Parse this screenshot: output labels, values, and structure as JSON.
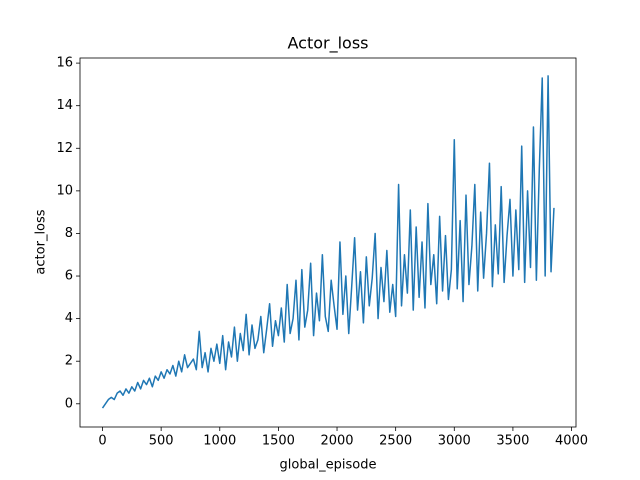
{
  "chart_data": {
    "type": "line",
    "title": "Actor_loss",
    "x_label": "global_episode",
    "y_label": "actor_loss",
    "x": [
      0,
      25,
      50,
      75,
      100,
      125,
      150,
      175,
      200,
      225,
      250,
      275,
      300,
      325,
      350,
      375,
      400,
      425,
      450,
      475,
      500,
      525,
      550,
      575,
      600,
      625,
      650,
      675,
      700,
      725,
      750,
      775,
      800,
      825,
      850,
      875,
      900,
      925,
      950,
      975,
      1000,
      1025,
      1050,
      1075,
      1100,
      1125,
      1150,
      1175,
      1200,
      1225,
      1250,
      1275,
      1300,
      1325,
      1350,
      1375,
      1400,
      1425,
      1450,
      1475,
      1500,
      1525,
      1550,
      1575,
      1600,
      1625,
      1650,
      1675,
      1700,
      1725,
      1750,
      1775,
      1800,
      1825,
      1850,
      1875,
      1900,
      1925,
      1950,
      1975,
      2000,
      2025,
      2050,
      2075,
      2100,
      2125,
      2150,
      2175,
      2200,
      2225,
      2250,
      2275,
      2300,
      2325,
      2350,
      2375,
      2400,
      2425,
      2450,
      2475,
      2500,
      2525,
      2550,
      2575,
      2600,
      2625,
      2650,
      2675,
      2700,
      2725,
      2750,
      2775,
      2800,
      2825,
      2850,
      2875,
      2900,
      2925,
      2950,
      2975,
      3000,
      3025,
      3050,
      3075,
      3100,
      3125,
      3150,
      3175,
      3200,
      3225,
      3250,
      3275,
      3300,
      3325,
      3350,
      3375,
      3400,
      3425,
      3450,
      3475,
      3500,
      3525,
      3550,
      3575,
      3600,
      3625,
      3650,
      3675,
      3700,
      3725,
      3750,
      3775,
      3800,
      3825,
      3850
    ],
    "series": [
      {
        "name": "actor_loss",
        "color": "#1f77b4",
        "values": [
          -0.2,
          0.0,
          0.2,
          0.3,
          0.2,
          0.5,
          0.6,
          0.4,
          0.7,
          0.5,
          0.8,
          0.6,
          1.0,
          0.7,
          1.1,
          0.9,
          1.2,
          0.8,
          1.3,
          1.1,
          1.5,
          1.2,
          1.6,
          1.4,
          1.8,
          1.3,
          2.0,
          1.5,
          2.3,
          1.7,
          1.9,
          2.1,
          1.6,
          3.4,
          1.7,
          2.4,
          1.5,
          2.6,
          2.0,
          2.8,
          1.9,
          3.2,
          1.6,
          2.9,
          2.2,
          3.6,
          2.0,
          3.3,
          2.5,
          4.2,
          2.3,
          3.7,
          2.6,
          3.0,
          4.1,
          2.4,
          3.5,
          4.7,
          2.7,
          3.9,
          3.2,
          4.5,
          2.9,
          5.6,
          3.3,
          4.0,
          5.8,
          3.0,
          6.3,
          3.6,
          4.4,
          6.6,
          3.2,
          5.2,
          3.9,
          7.0,
          4.1,
          3.4,
          5.8,
          4.6,
          3.5,
          7.6,
          4.2,
          6.0,
          3.3,
          5.5,
          7.8,
          4.4,
          6.2,
          3.8,
          6.9,
          4.6,
          5.9,
          8.0,
          4.0,
          6.4,
          4.8,
          7.2,
          4.3,
          5.6,
          4.1,
          10.3,
          4.6,
          7.0,
          5.2,
          9.1,
          4.4,
          8.3,
          5.0,
          7.6,
          4.5,
          9.4,
          5.6,
          7.0,
          4.7,
          8.8,
          5.3,
          7.9,
          4.9,
          6.3,
          12.4,
          5.4,
          8.6,
          4.8,
          9.8,
          5.6,
          7.4,
          10.3,
          5.3,
          9.0,
          5.9,
          8.0,
          11.3,
          5.5,
          8.4,
          6.1,
          10.2,
          5.7,
          7.9,
          9.6,
          6.0,
          9.1,
          6.3,
          12.1,
          5.7,
          10.0,
          6.4,
          13.0,
          5.8,
          11.0,
          15.3,
          6.0,
          15.4,
          6.2,
          9.2
        ]
      }
    ],
    "xlim": [
      -192,
      4038
    ],
    "ylim": [
      -1.09,
      16.24
    ],
    "xticks": [
      0,
      500,
      1000,
      1500,
      2000,
      2500,
      3000,
      3500,
      4000
    ],
    "yticks": [
      0,
      2,
      4,
      6,
      8,
      10,
      12,
      14,
      16
    ],
    "grid": false
  }
}
